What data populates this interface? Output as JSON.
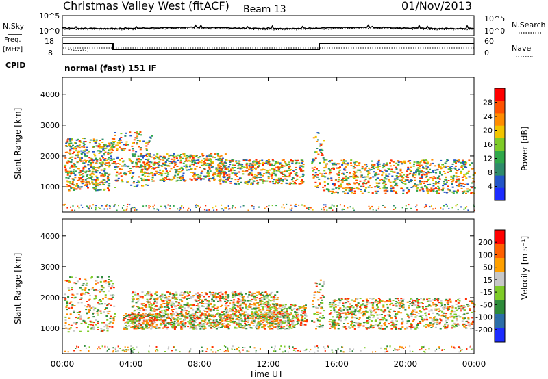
{
  "header": {
    "station": "Christmas Valley West (fitACF)",
    "beam": "Beam 13",
    "date": "01/Nov/2013"
  },
  "noise_panel": {
    "left_label": "N.Sky",
    "right_label": "N.Search",
    "ticks": [
      "10^5",
      "10^0"
    ]
  },
  "freq_panel": {
    "left_label_line1": "Freq.",
    "left_label_line2": "[MHz]",
    "left_ticks": [
      "18",
      "8"
    ],
    "right_label": "Nave",
    "right_ticks": [
      "60",
      "0"
    ],
    "cpid_label": "CPID",
    "cpid_text": "normal (fast) 151 IF"
  },
  "chart_data": [
    {
      "type": "heatmap",
      "title": "",
      "quantity": "Power",
      "ylabel": "Slant Range [km]",
      "xlabel": "",
      "ylim": [
        180,
        4550
      ],
      "yticks": [
        "1000",
        "2000",
        "3000",
        "4000"
      ],
      "colorbar_label": "Power [dB]",
      "colorbar_ticks": [
        "4",
        "8",
        "12",
        "16",
        "20",
        "24",
        "28"
      ],
      "colorbar_colors": [
        "#1c2cff",
        "#2255c8",
        "#2e8b6b",
        "#2fa84a",
        "#7ecb28",
        "#f2c500",
        "#ff8c00",
        "#ff5200",
        "#ff0000"
      ],
      "scatter_colors": [
        "#ff2a00",
        "#ff5a00",
        "#ff8c00",
        "#f2c500",
        "#7ecb28",
        "#2fa84a",
        "#2e8b6b",
        "#2255c8"
      ],
      "regions": [
        {
          "t": [
            0.1,
            2.7
          ],
          "r": [
            900,
            1700
          ],
          "dominant": "red"
        },
        {
          "t": [
            0.1,
            3.0
          ],
          "r": [
            1700,
            2600
          ],
          "dominant": "orange-green"
        },
        {
          "t": [
            3.0,
            5.2
          ],
          "r": [
            1000,
            2800
          ],
          "dominant": "orange-green diagonal"
        },
        {
          "t": [
            4.5,
            9.5
          ],
          "r": [
            1200,
            2100
          ],
          "dominant": "blue-green"
        },
        {
          "t": [
            9.0,
            14.0
          ],
          "r": [
            1100,
            1900
          ],
          "dominant": "orange-red"
        },
        {
          "t": [
            14.5,
            15.2
          ],
          "r": [
            1000,
            2800
          ],
          "dominant": "orange spike"
        },
        {
          "t": [
            15.2,
            24.0
          ],
          "r": [
            800,
            1900
          ],
          "dominant": "red"
        }
      ]
    },
    {
      "type": "heatmap",
      "title": "",
      "quantity": "Velocity",
      "ylabel": "Slant Range [km]",
      "xlabel": "Time UT",
      "ylim": [
        180,
        4550
      ],
      "yticks": [
        "1000",
        "2000",
        "3000",
        "4000"
      ],
      "xticks": [
        "00:00",
        "04:00",
        "08:00",
        "12:00",
        "16:00",
        "20:00",
        "00:00"
      ],
      "colorbar_label": "Velocity [m s⁻¹]",
      "colorbar_ticks": [
        "200",
        "100",
        "50",
        "15",
        "-15",
        "-50",
        "-100",
        "-200"
      ],
      "colorbar_colors": [
        "#1c2cff",
        "#2c6ea8",
        "#2e8b3a",
        "#7ecb28",
        "#c8c8c8",
        "#ffa000",
        "#ff6000",
        "#ff0000"
      ],
      "scatter_colors": [
        "#c8c8c8",
        "#ff2a00",
        "#ff8c00",
        "#7ecb28",
        "#2e8b3a"
      ],
      "regions": [
        {
          "t": [
            0.1,
            3.0
          ],
          "r": [
            900,
            2700
          ],
          "dominant": "grey"
        },
        {
          "t": [
            4.0,
            12.5
          ],
          "r": [
            1400,
            2200
          ],
          "dominant": "red"
        },
        {
          "t": [
            3.5,
            13.5
          ],
          "r": [
            1000,
            1500
          ],
          "dominant": "orange"
        },
        {
          "t": [
            12.0,
            14.2
          ],
          "r": [
            1100,
            1800
          ],
          "dominant": "green"
        },
        {
          "t": [
            14.5,
            15.2
          ],
          "r": [
            1000,
            2600
          ],
          "dominant": "green spike"
        },
        {
          "t": [
            15.5,
            24.0
          ],
          "r": [
            1000,
            2000
          ],
          "dominant": "grey"
        }
      ]
    }
  ]
}
